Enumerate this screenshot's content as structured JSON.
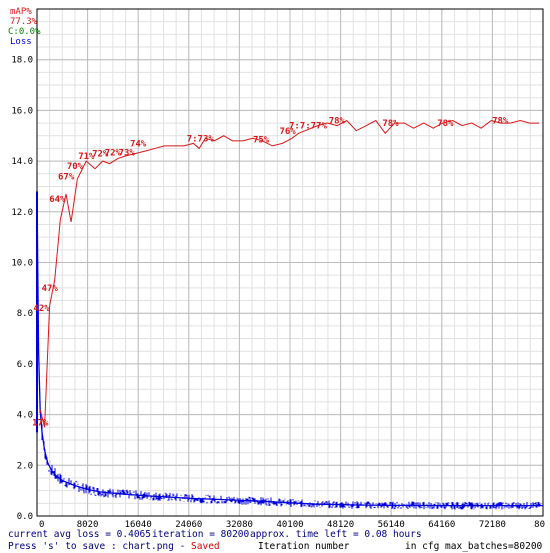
{
  "colors": {
    "map": "#d81818",
    "loss": "#0000dd",
    "class": "#008800",
    "status": "#000080",
    "saved": "#e00000",
    "grid": "#bdbdbd"
  },
  "legend": {
    "map_label": "mAP%",
    "map_value": "77.3%",
    "class_label": "C:0.0%",
    "loss_label": "Loss"
  },
  "status": {
    "avg_loss": "current avg loss = 0.4065",
    "iteration": "iteration = 80200",
    "time_left": "approx. time left = 0.08 hours",
    "save_hint": "Press 's' to save : chart.png -",
    "saved": "Saved",
    "x_axis_label": "Iteration number",
    "max_batches": "in cfg max_batches=80200"
  },
  "chart_data": {
    "type": "line",
    "xlabel": "Iteration number",
    "ylabel": "",
    "xlim": [
      0,
      80200
    ],
    "ylim": [
      0,
      20
    ],
    "x_tick_labels": [
      "0",
      "8020",
      "16040",
      "24060",
      "32080",
      "40100",
      "48120",
      "56140",
      "64160",
      "72180",
      "80"
    ],
    "y_tick_labels": [
      "0.0",
      "2.0",
      "4.0",
      "6.0",
      "8.0",
      "10.0",
      "12.0",
      "14.0",
      "16.0",
      "18.0"
    ],
    "y_tick_values": [
      0,
      2,
      4,
      6,
      8,
      10,
      12,
      14,
      16,
      18
    ],
    "grid": true,
    "series": [
      {
        "name": "Loss",
        "x": [
          0,
          250,
          500,
          800,
          1200,
          1700,
          2300,
          3000,
          4000,
          5000,
          6000,
          8000,
          10000,
          13000,
          16000,
          20000,
          24000,
          28000,
          32000,
          36000,
          40000,
          44000,
          48000,
          52000,
          56000,
          60000,
          64000,
          68000,
          72000,
          76000,
          80200
        ],
        "y": [
          12.8,
          6.5,
          4.2,
          3.3,
          2.6,
          2.1,
          1.8,
          1.6,
          1.4,
          1.3,
          1.2,
          1.05,
          0.95,
          0.88,
          0.82,
          0.76,
          0.7,
          0.66,
          0.62,
          0.58,
          0.52,
          0.47,
          0.45,
          0.43,
          0.42,
          0.42,
          0.41,
          0.41,
          0.41,
          0.41,
          0.41
        ]
      },
      {
        "name": "mAP%",
        "x": [
          500,
          1200,
          2000,
          2800,
          3700,
          4600,
          5400,
          6400,
          7800,
          9200,
          10400,
          11500,
          12800,
          14000,
          15600,
          17200,
          18700,
          20200,
          21800,
          23300,
          24800,
          25700,
          26700,
          28100,
          29600,
          31000,
          32600,
          34200,
          35700,
          37300,
          38900,
          40400,
          41500,
          42500,
          43500,
          44500,
          46000,
          47600,
          49100,
          50600,
          52200,
          53700,
          55200,
          56700,
          58200,
          59700,
          61300,
          62800,
          64300,
          65900,
          67400,
          68900,
          70400,
          72000,
          73500,
          75000,
          76600,
          78100,
          79600
        ],
        "y": [
          4.2,
          3.5,
          8.3,
          9.3,
          11.7,
          12.7,
          11.6,
          13.3,
          14.0,
          13.7,
          14.0,
          13.9,
          14.1,
          14.2,
          14.3,
          14.4,
          14.5,
          14.6,
          14.6,
          14.6,
          14.7,
          14.5,
          14.9,
          14.8,
          15.0,
          14.8,
          14.8,
          14.9,
          14.8,
          14.6,
          14.7,
          14.9,
          15.1,
          15.2,
          15.3,
          15.4,
          15.5,
          15.4,
          15.6,
          15.2,
          15.4,
          15.6,
          15.1,
          15.5,
          15.5,
          15.3,
          15.5,
          15.3,
          15.5,
          15.6,
          15.4,
          15.5,
          15.3,
          15.6,
          15.5,
          15.5,
          15.6,
          15.5,
          15.5
        ],
        "labels": [
          {
            "x": 500,
            "y": 3.5,
            "text": "17%"
          },
          {
            "x": 700,
            "y": 8.0,
            "text": "42%"
          },
          {
            "x": 2000,
            "y": 8.8,
            "text": "47%"
          },
          {
            "x": 3200,
            "y": 12.3,
            "text": "64%"
          },
          {
            "x": 4600,
            "y": 13.2,
            "text": "67%"
          },
          {
            "x": 6000,
            "y": 13.6,
            "text": "70%"
          },
          {
            "x": 7800,
            "y": 14.0,
            "text": "71%"
          },
          {
            "x": 10000,
            "y": 14.1,
            "text": "72%"
          },
          {
            "x": 12000,
            "y": 14.15,
            "text": "72%"
          },
          {
            "x": 14200,
            "y": 14.15,
            "text": "73%"
          },
          {
            "x": 16000,
            "y": 14.5,
            "text": "74%"
          },
          {
            "x": 25000,
            "y": 14.7,
            "text": "7:73%"
          },
          {
            "x": 35500,
            "y": 14.65,
            "text": "75%"
          },
          {
            "x": 39700,
            "y": 15.0,
            "text": "76%"
          },
          {
            "x": 41200,
            "y": 15.2,
            "text": "7:7:77%"
          },
          {
            "x": 47500,
            "y": 15.4,
            "text": "78%"
          },
          {
            "x": 56000,
            "y": 15.3,
            "text": "78%"
          },
          {
            "x": 64700,
            "y": 15.3,
            "text": "78%"
          },
          {
            "x": 73400,
            "y": 15.4,
            "text": "78%"
          }
        ]
      },
      {
        "name": "C:0.0%",
        "x": [],
        "y": []
      }
    ]
  }
}
